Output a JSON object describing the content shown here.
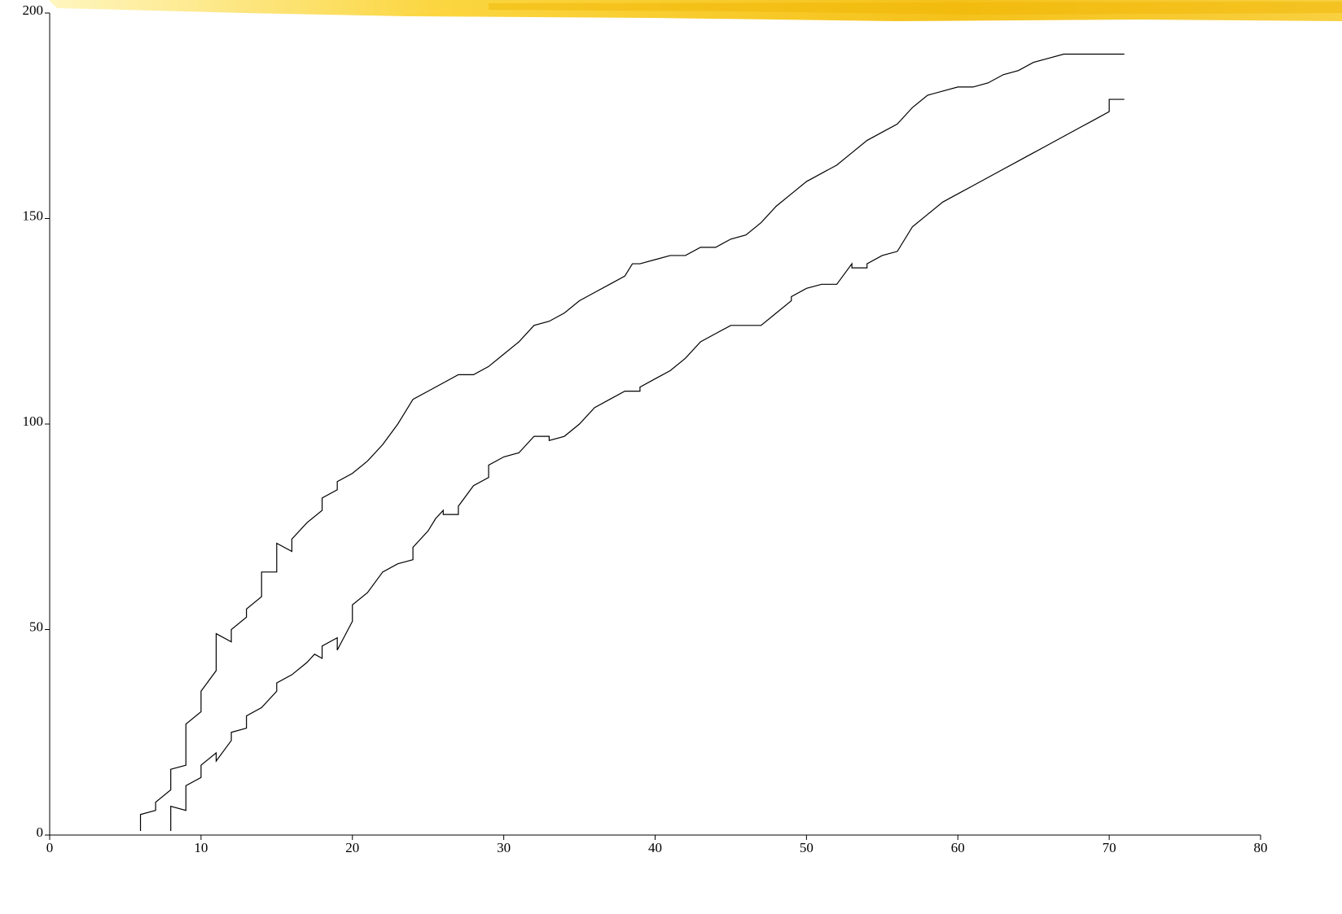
{
  "chart_data": {
    "type": "line",
    "series": [
      {
        "color": "#000000",
        "x": [
          6,
          6,
          7,
          7,
          8,
          8,
          9,
          9,
          10,
          10,
          11,
          11,
          12,
          12,
          13,
          13,
          14,
          14,
          15,
          15,
          16,
          16,
          17,
          18,
          18,
          19,
          19,
          20,
          21,
          22,
          23,
          24,
          25,
          26,
          27,
          28,
          29,
          30,
          31,
          32,
          33,
          34,
          35,
          36,
          37,
          38,
          38.5,
          39,
          40,
          41,
          42,
          43,
          44,
          45,
          46,
          47,
          48,
          49,
          50,
          51,
          52,
          53,
          54,
          55,
          56,
          57,
          58,
          59,
          60,
          61,
          62,
          63,
          64,
          65,
          66,
          67,
          68,
          69,
          71
        ],
        "values": [
          1,
          5,
          6,
          8,
          11,
          16,
          17,
          27,
          30,
          35,
          40,
          49,
          47,
          50,
          53,
          55,
          58,
          64,
          64,
          71,
          69,
          72,
          76,
          79,
          82,
          84,
          86,
          88,
          91,
          95,
          100,
          106,
          108,
          110,
          112,
          112,
          114,
          117,
          120,
          124,
          125,
          127,
          130,
          132,
          134,
          136,
          139,
          139,
          140,
          141,
          141,
          143,
          143,
          145,
          146,
          149,
          153,
          156,
          159,
          161,
          163,
          166,
          169,
          171,
          173,
          177,
          180,
          181,
          182,
          182,
          183,
          185,
          186,
          188,
          189,
          190,
          190,
          190,
          190
        ]
      },
      {
        "color": "#000000",
        "x": [
          8,
          8,
          9,
          9,
          10,
          10,
          11,
          11,
          12,
          12,
          13,
          13,
          14,
          15,
          15,
          16,
          17,
          17.5,
          18,
          18,
          19,
          19,
          20,
          20,
          21,
          22,
          23,
          24,
          24,
          25,
          25.5,
          26,
          26,
          27,
          27,
          28,
          29,
          29,
          30,
          31,
          32,
          33,
          33,
          34,
          35,
          36,
          37,
          38,
          39,
          39,
          40,
          41,
          42,
          43,
          44,
          45,
          46,
          47,
          48,
          49,
          49,
          50,
          51,
          52,
          53,
          53,
          54,
          54,
          55,
          56,
          57,
          58,
          59,
          60,
          61,
          62,
          63,
          64,
          65,
          66,
          67,
          68,
          69,
          70,
          70,
          71
        ],
        "values": [
          1,
          7,
          6,
          12,
          14,
          17,
          20,
          18,
          23,
          25,
          26,
          29,
          31,
          35,
          37,
          39,
          42,
          44,
          43,
          46,
          48,
          45,
          52,
          56,
          59,
          64,
          66,
          67,
          70,
          74,
          77,
          79,
          78,
          78,
          80,
          85,
          87,
          90,
          92,
          93,
          97,
          97,
          96,
          97,
          100,
          104,
          106,
          108,
          108,
          109,
          111,
          113,
          116,
          120,
          122,
          124,
          124,
          124,
          127,
          130,
          131,
          133,
          134,
          134,
          139,
          138,
          138,
          139,
          141,
          142,
          148,
          151,
          154,
          156,
          158,
          160,
          162,
          164,
          166,
          168,
          170,
          172,
          174,
          176,
          179,
          179
        ]
      }
    ],
    "xlim": [
      0,
      80
    ],
    "xticks": [
      0,
      10,
      20,
      30,
      40,
      50,
      60,
      70,
      80
    ],
    "ylim": [
      0,
      200
    ],
    "yticks": [
      0,
      50,
      100,
      150,
      200
    ],
    "grid": false
  }
}
